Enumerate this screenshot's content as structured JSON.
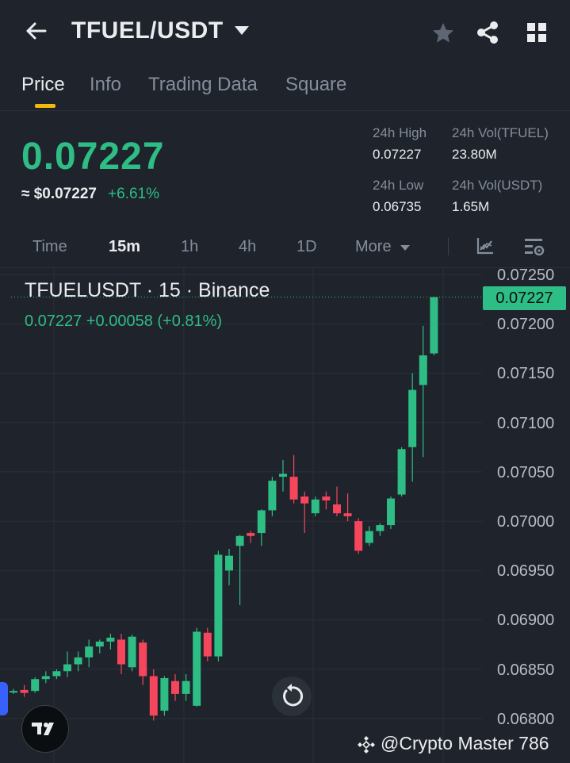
{
  "header": {
    "pair": "TFUEL/USDT"
  },
  "tabs": [
    {
      "label": "Price",
      "active": true
    },
    {
      "label": "Info",
      "active": false
    },
    {
      "label": "Trading Data",
      "active": false
    },
    {
      "label": "Square",
      "active": false
    }
  ],
  "price": {
    "last": "0.07227",
    "usd": "≈ $0.07227",
    "change_pct": "+6.61%"
  },
  "stats": {
    "high_label": "24h High",
    "high_value": "0.07227",
    "low_label": "24h Low",
    "low_value": "0.06735",
    "vol_base_label": "24h Vol(TFUEL)",
    "vol_base_value": "23.80M",
    "vol_quote_label": "24h Vol(USDT)",
    "vol_quote_value": "1.65M"
  },
  "timeframes": {
    "items": [
      "Time",
      "15m",
      "1h",
      "4h",
      "1D",
      "More"
    ],
    "selected": "15m"
  },
  "colors": {
    "up": "#2ebd85",
    "down": "#f6465d",
    "accent": "#f0b90b",
    "background": "#1f232b"
  },
  "chart_info": {
    "symbol": "TFUELUSDT · 15 · Binance",
    "ohlc": "0.07227  +0.00058 (+0.81%)",
    "last_price_tag": "0.07227"
  },
  "watermark": "@Crypto Master 786",
  "chart_data": {
    "type": "candlestick",
    "interval": "15",
    "y_ticks": [
      "0.07250",
      "0.07200",
      "0.07150",
      "0.07100",
      "0.07050",
      "0.07000",
      "0.06950",
      "0.06900",
      "0.06850",
      "0.06800"
    ],
    "ylim": [
      0.06792,
      0.07262
    ],
    "grid": true,
    "candles": [
      {
        "o": 0.06827,
        "h": 0.0683,
        "l": 0.06825,
        "c": 0.06828
      },
      {
        "o": 0.06829,
        "h": 0.06834,
        "l": 0.06822,
        "c": 0.06826
      },
      {
        "o": 0.06828,
        "h": 0.06842,
        "l": 0.06826,
        "c": 0.0684
      },
      {
        "o": 0.0684,
        "h": 0.06848,
        "l": 0.06836,
        "c": 0.06843
      },
      {
        "o": 0.06843,
        "h": 0.0685,
        "l": 0.0684,
        "c": 0.06848
      },
      {
        "o": 0.06848,
        "h": 0.06868,
        "l": 0.06842,
        "c": 0.06855
      },
      {
        "o": 0.06855,
        "h": 0.06868,
        "l": 0.06848,
        "c": 0.06862
      },
      {
        "o": 0.06862,
        "h": 0.0688,
        "l": 0.06852,
        "c": 0.06873
      },
      {
        "o": 0.06873,
        "h": 0.0688,
        "l": 0.06866,
        "c": 0.06878
      },
      {
        "o": 0.06878,
        "h": 0.06886,
        "l": 0.0687,
        "c": 0.06882
      },
      {
        "o": 0.0688,
        "h": 0.06886,
        "l": 0.06845,
        "c": 0.06855
      },
      {
        "o": 0.06852,
        "h": 0.06885,
        "l": 0.06848,
        "c": 0.06883
      },
      {
        "o": 0.06877,
        "h": 0.0688,
        "l": 0.06834,
        "c": 0.06843
      },
      {
        "o": 0.06843,
        "h": 0.0685,
        "l": 0.06798,
        "c": 0.06803
      },
      {
        "o": 0.06808,
        "h": 0.06843,
        "l": 0.06803,
        "c": 0.06841
      },
      {
        "o": 0.06838,
        "h": 0.06845,
        "l": 0.06818,
        "c": 0.06825
      },
      {
        "o": 0.06825,
        "h": 0.06845,
        "l": 0.06818,
        "c": 0.06838
      },
      {
        "o": 0.06813,
        "h": 0.06892,
        "l": 0.06812,
        "c": 0.06888
      },
      {
        "o": 0.06887,
        "h": 0.06892,
        "l": 0.06858,
        "c": 0.06863
      },
      {
        "o": 0.06863,
        "h": 0.0697,
        "l": 0.06858,
        "c": 0.06966
      },
      {
        "o": 0.0695,
        "h": 0.06972,
        "l": 0.06935,
        "c": 0.06965
      },
      {
        "o": 0.06975,
        "h": 0.06986,
        "l": 0.06915,
        "c": 0.06985
      },
      {
        "o": 0.06988,
        "h": 0.0699,
        "l": 0.06978,
        "c": 0.06985
      },
      {
        "o": 0.06988,
        "h": 0.07012,
        "l": 0.06975,
        "c": 0.07011
      },
      {
        "o": 0.07011,
        "h": 0.07045,
        "l": 0.07005,
        "c": 0.07041
      },
      {
        "o": 0.07045,
        "h": 0.07062,
        "l": 0.0703,
        "c": 0.07048
      },
      {
        "o": 0.07045,
        "h": 0.07067,
        "l": 0.07018,
        "c": 0.07022
      },
      {
        "o": 0.07025,
        "h": 0.0703,
        "l": 0.06988,
        "c": 0.07018
      },
      {
        "o": 0.07008,
        "h": 0.07025,
        "l": 0.07005,
        "c": 0.07022
      },
      {
        "o": 0.07025,
        "h": 0.0703,
        "l": 0.07012,
        "c": 0.07021
      },
      {
        "o": 0.07017,
        "h": 0.07035,
        "l": 0.07005,
        "c": 0.07008
      },
      {
        "o": 0.07008,
        "h": 0.07028,
        "l": 0.07,
        "c": 0.07005
      },
      {
        "o": 0.07,
        "h": 0.07003,
        "l": 0.06967,
        "c": 0.0697
      },
      {
        "o": 0.06978,
        "h": 0.06995,
        "l": 0.06975,
        "c": 0.0699
      },
      {
        "o": 0.0699,
        "h": 0.06998,
        "l": 0.06985,
        "c": 0.06996
      },
      {
        "o": 0.06996,
        "h": 0.07025,
        "l": 0.06992,
        "c": 0.07023
      },
      {
        "o": 0.07027,
        "h": 0.07075,
        "l": 0.07025,
        "c": 0.07073
      },
      {
        "o": 0.07075,
        "h": 0.0715,
        "l": 0.0704,
        "c": 0.07133
      },
      {
        "o": 0.07138,
        "h": 0.07198,
        "l": 0.07065,
        "c": 0.07168
      },
      {
        "o": 0.0717,
        "h": 0.07227,
        "l": 0.07168,
        "c": 0.07227
      }
    ]
  }
}
